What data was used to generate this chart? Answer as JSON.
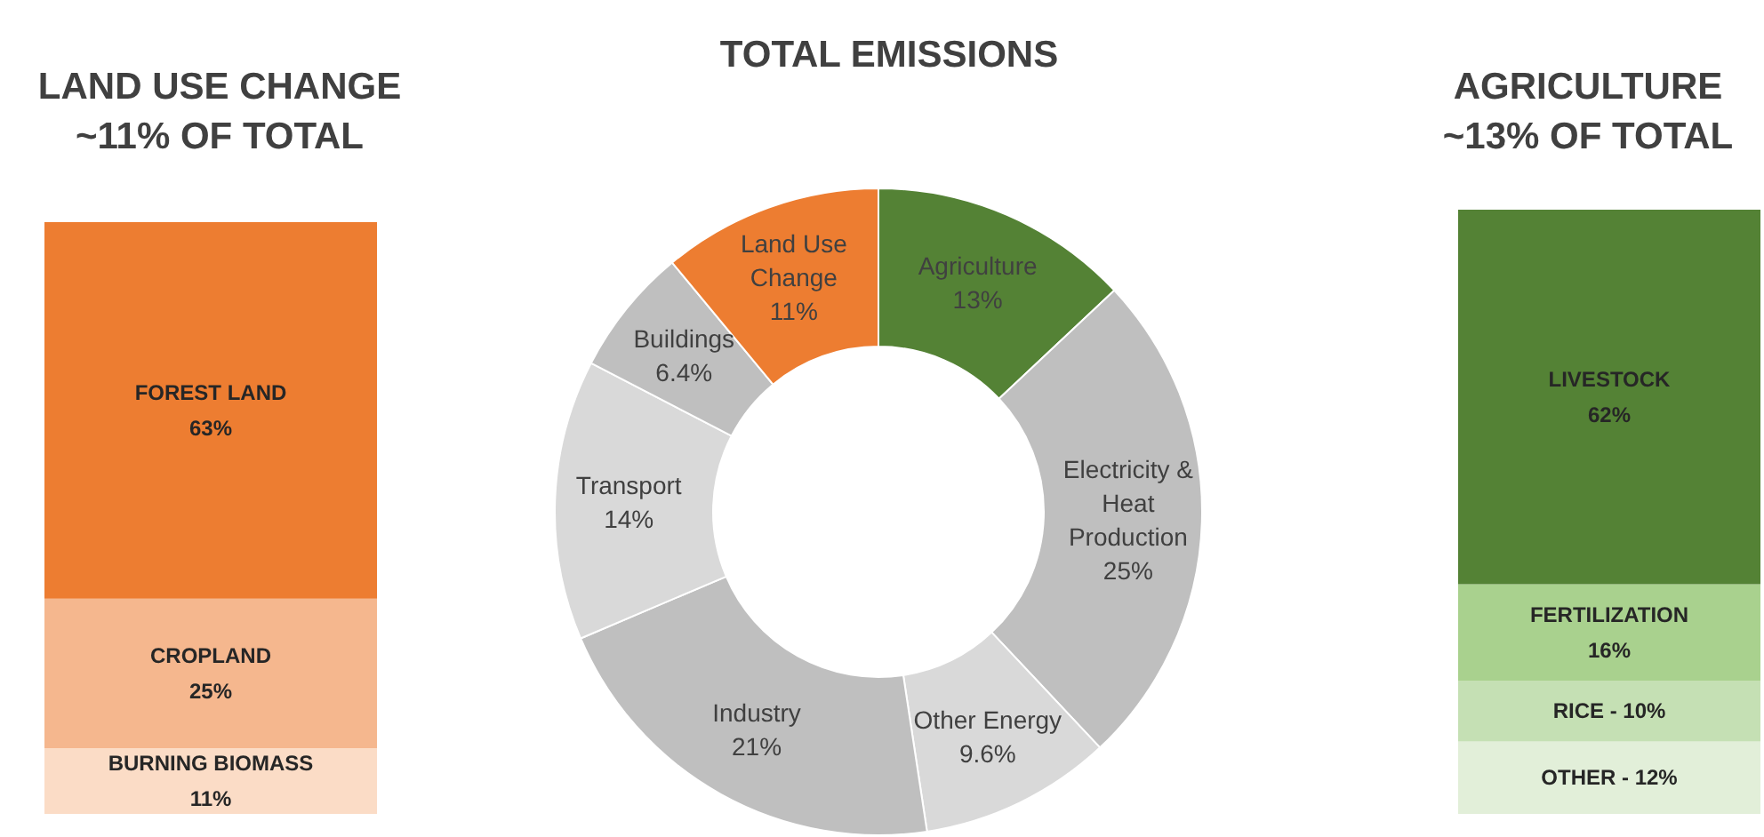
{
  "chart_data": [
    {
      "type": "bar",
      "title": "LAND USE CHANGE\n~11% OF TOTAL",
      "stacked": true,
      "categories": [
        null
      ],
      "tick_labels": false,
      "series": [
        {
          "name": "BURNING BIOMASS",
          "color": "#fbdcc6",
          "values": [
            11
          ],
          "value_labels": [
            "11%"
          ]
        },
        {
          "name": "CROPLAND",
          "color": "#f5b78e",
          "values": [
            25
          ],
          "value_labels": [
            "25%"
          ]
        },
        {
          "name": "FOREST LAND",
          "color": "#ed7d31",
          "values": [
            63
          ],
          "value_labels": [
            "63%"
          ]
        }
      ]
    },
    {
      "type": "donut",
      "title": "TOTAL EMISSIONS",
      "categories": [
        "Agriculture",
        "Electricity &\nHeat\nProduction",
        "Other Energy",
        "Industry",
        "Transport",
        "Buildings",
        "Land Use\nChange"
      ],
      "values": [
        13,
        25,
        9.6,
        21,
        14,
        6.4,
        11
      ],
      "value_labels": [
        "13%",
        "25%",
        "9.6%",
        "21%",
        "14%",
        "6.4%",
        "11%"
      ],
      "colors": [
        "#548235",
        "#bfbfbf",
        "#d9d9d9",
        "#bfbfbf",
        "#d9d9d9",
        "#bfbfbf",
        "#ed7d31"
      ]
    },
    {
      "type": "bar",
      "title": "AGRICULTURE\n~13% OF TOTAL",
      "stacked": true,
      "categories": [
        null
      ],
      "tick_labels": false,
      "series": [
        {
          "name": "OTHER -",
          "color": "#e2efd9",
          "values": [
            12
          ],
          "value_labels": [
            "12%"
          ]
        },
        {
          "name": "RICE -",
          "color": "#c5e0b4",
          "values": [
            10
          ],
          "value_labels": [
            "10%"
          ]
        },
        {
          "name": "FERTILIZATION",
          "color": "#a9d18e",
          "values": [
            16
          ],
          "value_labels": [
            "16%"
          ]
        },
        {
          "name": "LIVESTOCK",
          "color": "#548235",
          "values": [
            62
          ],
          "value_labels": [
            "62%"
          ]
        }
      ]
    }
  ]
}
